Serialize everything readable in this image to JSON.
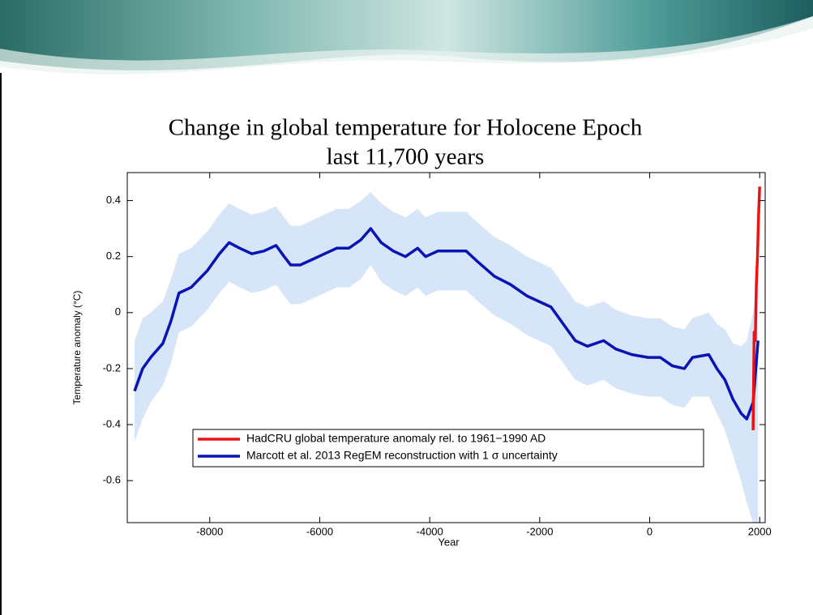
{
  "slide_title": [
    "Change in global temperature for Holocene Epoch",
    "last 11,700 years"
  ],
  "chart_data": {
    "type": "line",
    "xlabel": "Year",
    "ylabel": "Temperature anomaly (°C)",
    "xlim": [
      -9500,
      2100
    ],
    "xticks": [
      -8000,
      -6000,
      -4000,
      -2000,
      0,
      2000
    ],
    "ylim": [
      -0.75,
      0.5
    ],
    "yticks": [
      -0.6,
      -0.4,
      -0.2,
      0,
      0.2,
      0.4
    ],
    "grid": false,
    "legend": "lower-center",
    "series": [
      {
        "name": "HadCRU global temperature anomaly rel. to 1961−1990 AD",
        "color": "#ee1111",
        "x": [
          1880,
          1900,
          1920,
          1940,
          1960,
          1980,
          2000
        ],
        "values": [
          -0.42,
          -0.07,
          -0.1,
          0.1,
          0.2,
          0.35,
          0.45
        ]
      },
      {
        "name": "Marcott et al. 2013 RegEM reconstruction with 1 σ uncertainty",
        "color": "#0a14b4",
        "band_color": "#d6e6f8",
        "x": [
          -9368,
          -9220,
          -9074,
          -8853,
          -8706,
          -8559,
          -8338,
          -8044,
          -7824,
          -7647,
          -7456,
          -7235,
          -7015,
          -6794,
          -6647,
          -6529,
          -6353,
          -6132,
          -5912,
          -5691,
          -5470,
          -5250,
          -5074,
          -4882,
          -4662,
          -4441,
          -4221,
          -4074,
          -3853,
          -3632,
          -3338,
          -3118,
          -2824,
          -2529,
          -2235,
          -2015,
          -1794,
          -1574,
          -1353,
          -1132,
          -838,
          -618,
          -324,
          -29,
          191,
          412,
          632,
          779,
          1074,
          1221,
          1368,
          1515,
          1662,
          1765,
          1882,
          1970
        ],
        "values": [
          -0.28,
          -0.2,
          -0.16,
          -0.11,
          -0.03,
          0.07,
          0.09,
          0.15,
          0.21,
          0.25,
          0.23,
          0.21,
          0.22,
          0.24,
          0.2,
          0.17,
          0.17,
          0.19,
          0.21,
          0.23,
          0.23,
          0.26,
          0.3,
          0.25,
          0.22,
          0.2,
          0.23,
          0.2,
          0.22,
          0.22,
          0.22,
          0.18,
          0.13,
          0.1,
          0.06,
          0.04,
          0.02,
          -0.04,
          -0.1,
          -0.12,
          -0.1,
          -0.13,
          -0.15,
          -0.16,
          -0.16,
          -0.19,
          -0.2,
          -0.16,
          -0.15,
          -0.2,
          -0.24,
          -0.31,
          -0.36,
          -0.38,
          -0.32,
          -0.1
        ],
        "band_upper": [
          -0.1,
          -0.02,
          0.0,
          0.04,
          0.12,
          0.21,
          0.23,
          0.29,
          0.35,
          0.39,
          0.37,
          0.35,
          0.36,
          0.38,
          0.34,
          0.31,
          0.31,
          0.33,
          0.35,
          0.37,
          0.37,
          0.4,
          0.43,
          0.39,
          0.36,
          0.34,
          0.37,
          0.34,
          0.36,
          0.36,
          0.36,
          0.32,
          0.27,
          0.24,
          0.2,
          0.18,
          0.16,
          0.1,
          0.04,
          0.02,
          0.04,
          0.01,
          -0.01,
          -0.02,
          -0.02,
          -0.05,
          -0.06,
          -0.02,
          0.0,
          -0.04,
          -0.06,
          -0.11,
          -0.12,
          -0.1,
          0.0,
          0.15
        ],
        "band_lower": [
          -0.46,
          -0.38,
          -0.32,
          -0.26,
          -0.18,
          -0.07,
          -0.05,
          0.01,
          0.07,
          0.11,
          0.09,
          0.07,
          0.08,
          0.1,
          0.06,
          0.03,
          0.03,
          0.05,
          0.07,
          0.09,
          0.09,
          0.12,
          0.17,
          0.11,
          0.08,
          0.06,
          0.09,
          0.06,
          0.08,
          0.08,
          0.08,
          0.04,
          -0.01,
          -0.04,
          -0.08,
          -0.1,
          -0.12,
          -0.18,
          -0.24,
          -0.26,
          -0.24,
          -0.27,
          -0.29,
          -0.3,
          -0.3,
          -0.33,
          -0.34,
          -0.3,
          -0.3,
          -0.36,
          -0.42,
          -0.51,
          -0.6,
          -0.68,
          -0.75,
          -0.75
        ]
      }
    ]
  }
}
